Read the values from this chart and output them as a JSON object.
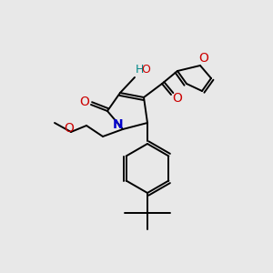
{
  "bg_color": "#e8e8e8",
  "atom_colors": {
    "C": "#000000",
    "N": "#0000cc",
    "O": "#cc0000",
    "H": "#008888"
  },
  "bond_color": "#000000",
  "bond_width": 1.4,
  "figsize": [
    3.0,
    3.0
  ],
  "dpi": 100
}
